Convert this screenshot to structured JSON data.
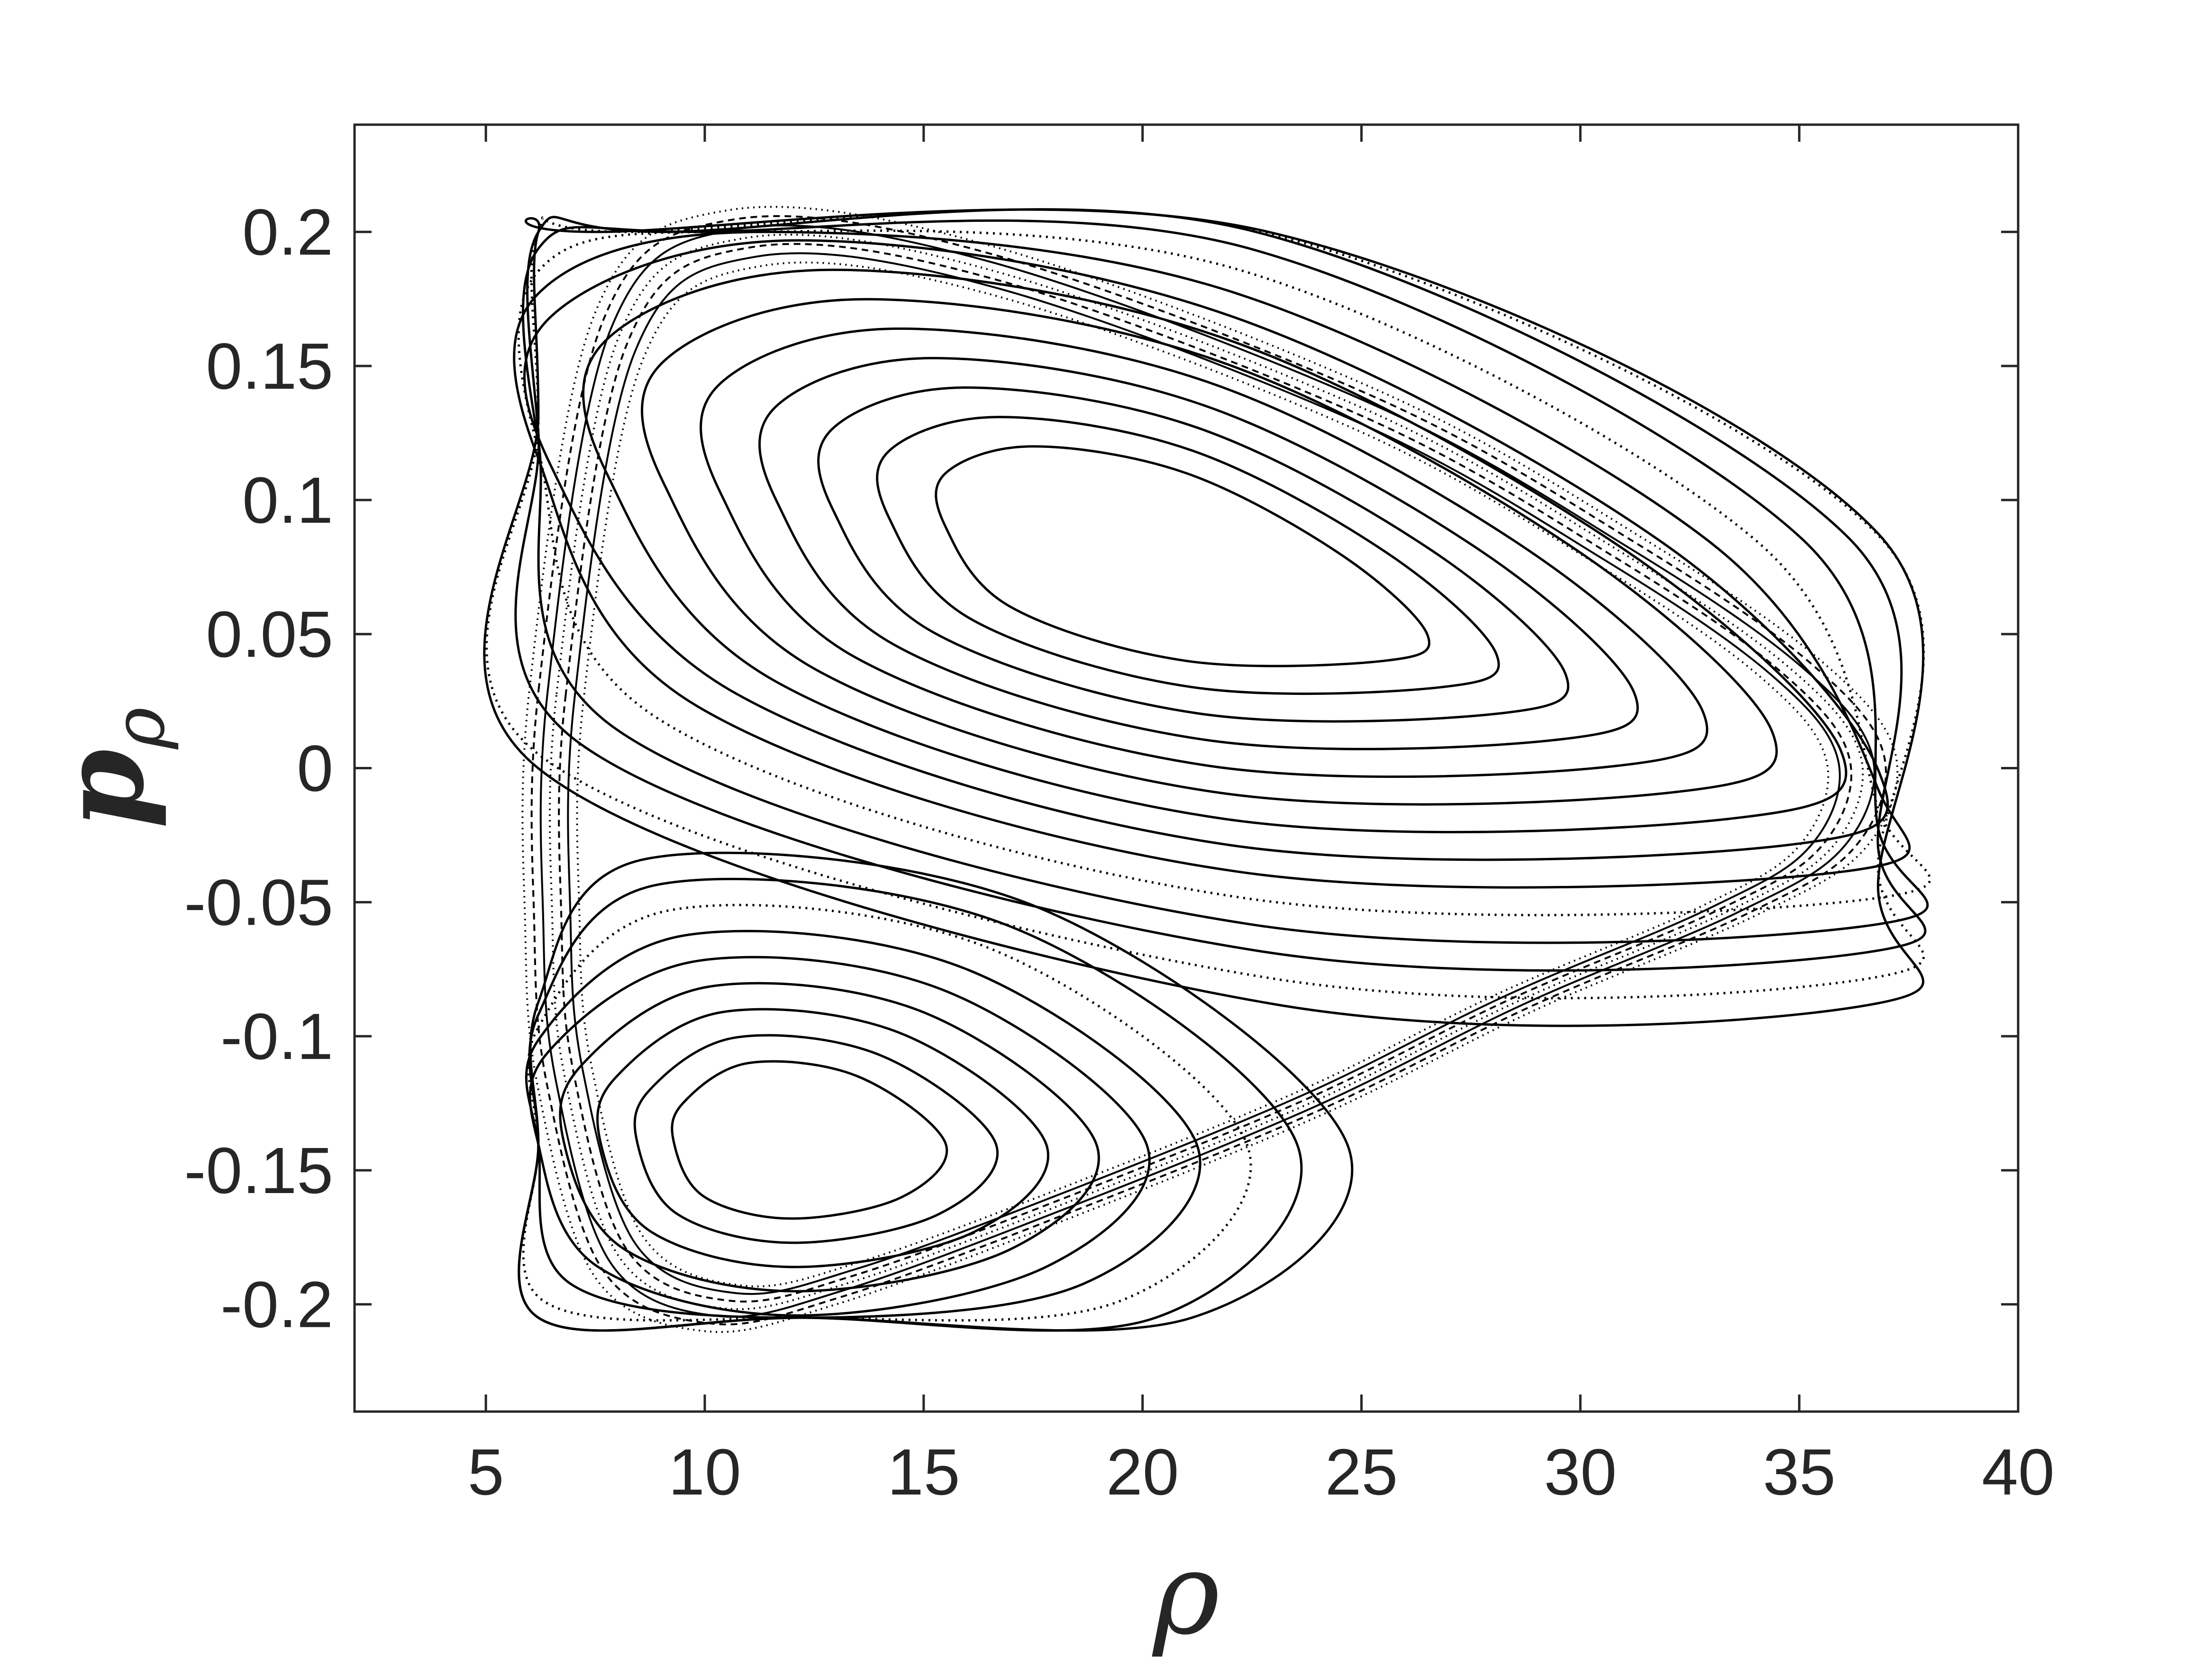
{
  "chart_data": {
    "type": "scatter",
    "xlabel": "ρ",
    "ylabel": "p",
    "ylabel_subscript": "ρ",
    "xlim": [
      2,
      40
    ],
    "ylim": [
      -0.24,
      0.24
    ],
    "xticks": [
      5,
      10,
      15,
      20,
      25,
      30,
      35,
      40
    ],
    "yticks": [
      0.2,
      0.15,
      0.1,
      0.05,
      0,
      -0.05,
      -0.1,
      -0.15,
      -0.2
    ],
    "xtick_labels": [
      "5",
      "10",
      "15",
      "20",
      "25",
      "30",
      "35",
      "40"
    ],
    "ytick_labels": [
      "0.2",
      "0.15",
      "0.1",
      "0.05",
      "0",
      "-0.05",
      "-0.1",
      "-0.15",
      "-0.2"
    ],
    "grid": false,
    "box": true,
    "marker_color": "#000000",
    "series": [
      {
        "values": [
          [
            6.0,
            0.03
          ],
          [
            7.5,
            0.17
          ],
          [
            10.5,
            0.208
          ],
          [
            16.5,
            0.195
          ],
          [
            25.5,
            0.14
          ],
          [
            31.5,
            0.085
          ],
          [
            35.5,
            0.04
          ],
          [
            37.2,
            0.005
          ],
          [
            36.5,
            -0.03
          ],
          [
            34.0,
            -0.055
          ],
          [
            29.0,
            -0.09
          ],
          [
            24.0,
            -0.13
          ],
          [
            18.0,
            -0.17
          ],
          [
            13.0,
            -0.2
          ],
          [
            10.0,
            -0.21
          ],
          [
            7.5,
            -0.19
          ],
          [
            6.2,
            -0.12
          ],
          [
            5.9,
            -0.06
          ]
        ]
      },
      {
        "values": [
          [
            15.5,
            0.11
          ],
          [
            17.5,
            0.12
          ],
          [
            21.0,
            0.11
          ],
          [
            24.5,
            0.08
          ],
          [
            26.5,
            0.05
          ],
          [
            25.5,
            0.04
          ],
          [
            21.0,
            0.04
          ],
          [
            17.0,
            0.06
          ],
          [
            15.5,
            0.09
          ]
        ]
      },
      {
        "values": [
          [
            9.5,
            -0.125
          ],
          [
            11.0,
            -0.11
          ],
          [
            13.5,
            -0.115
          ],
          [
            15.5,
            -0.14
          ],
          [
            14.5,
            -0.16
          ],
          [
            12.0,
            -0.168
          ],
          [
            10.0,
            -0.16
          ],
          [
            9.3,
            -0.14
          ]
        ]
      }
    ]
  }
}
